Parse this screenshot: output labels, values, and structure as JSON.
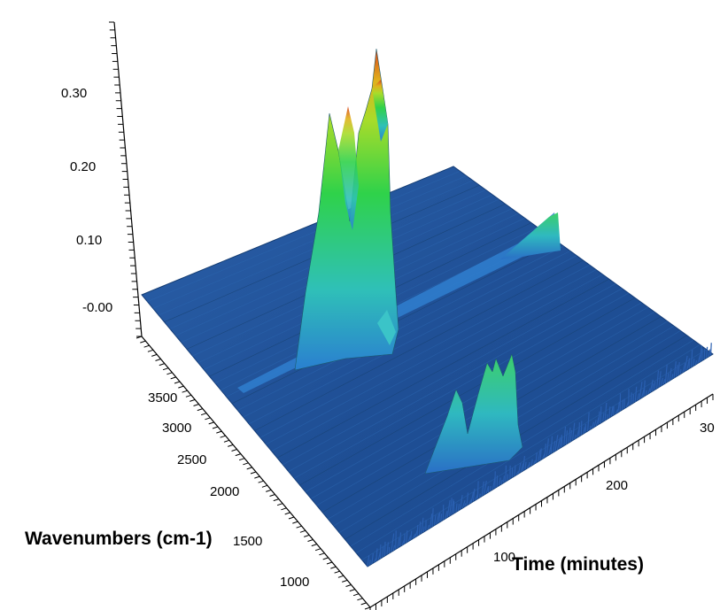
{
  "chart_data": {
    "type": "surface-3d",
    "title": "",
    "zlabel": "",
    "xlabel": "Time (minutes)",
    "ylabel": "Wavenumbers (cm-1)",
    "z_ticks": [
      "0.30",
      "0.20",
      "0.10",
      "-0.00"
    ],
    "wavenumber_ticks": [
      "3500",
      "3000",
      "2500",
      "2000",
      "1500",
      "1000"
    ],
    "time_ticks": [
      "100",
      "200",
      "30"
    ],
    "zlim": [
      -0.02,
      0.36
    ],
    "wavenumber_range": [
      3750,
      700
    ],
    "time_range": [
      0,
      310
    ],
    "colormap": [
      "#1f4e9b",
      "#2f8fd6",
      "#2ec4b6",
      "#2fd24a",
      "#9fdc2a",
      "#e3c11e",
      "#d9431a"
    ],
    "features": [
      {
        "wavenumber": 3100,
        "time_start": 0,
        "time_end": 310,
        "peak_absorbance": 0.01
      },
      {
        "wavenumber": 2350,
        "time_start": 40,
        "time_end": 110,
        "peak_absorbance": 0.35
      },
      {
        "wavenumber": 2350,
        "time_start": 240,
        "time_end": 250,
        "peak_absorbance": 0.08
      },
      {
        "wavenumber": 1100,
        "time_start": 120,
        "time_end": 200,
        "peak_absorbance": 0.14
      }
    ]
  }
}
